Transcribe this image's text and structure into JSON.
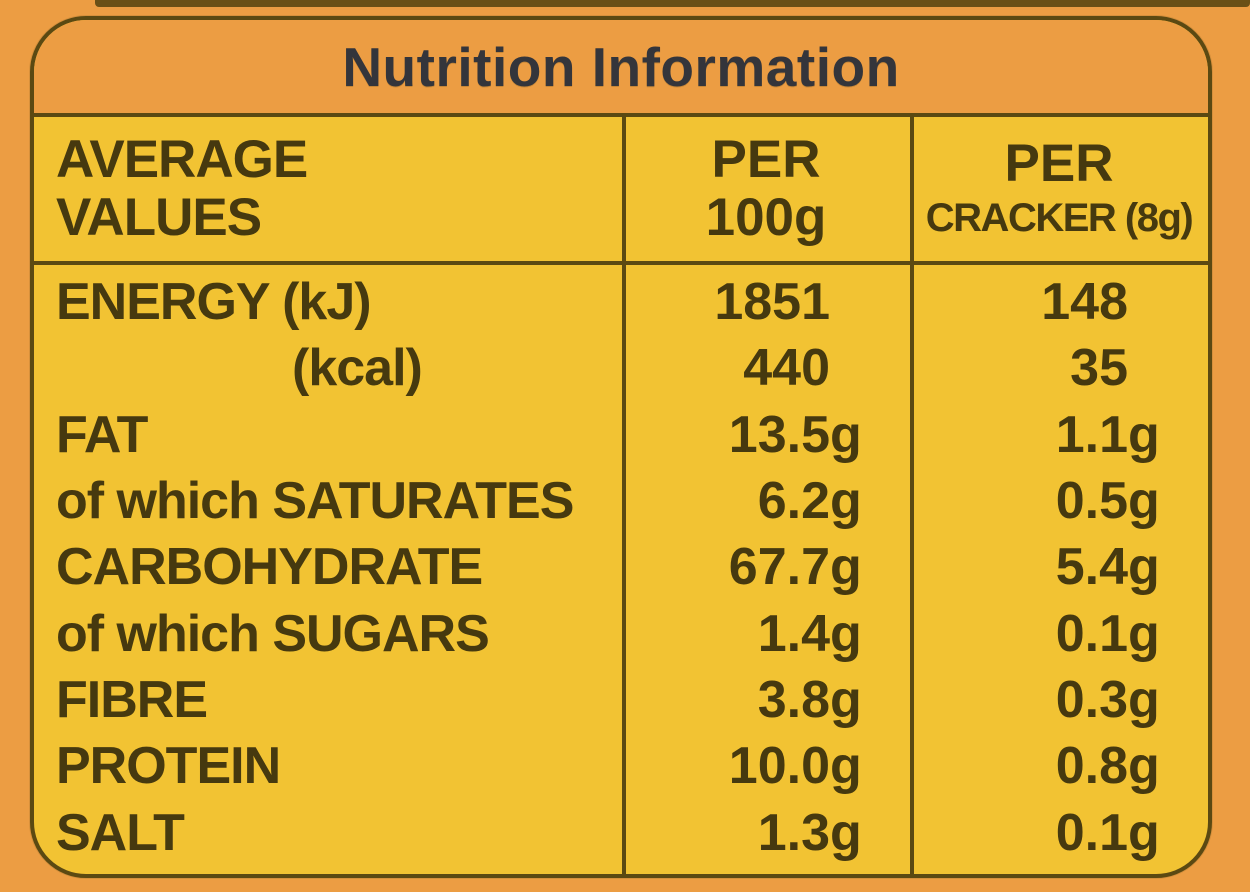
{
  "title": "Nutrition Information",
  "colors": {
    "background_orange": "#ec9d43",
    "panel_yellow": "#f2c333",
    "line_dark_olive": "#5b4912",
    "table_text": "#46390f",
    "title_text": "#34353b"
  },
  "table": {
    "headers": {
      "col1": {
        "line1": "AVERAGE",
        "line2": "VALUES"
      },
      "col2": {
        "line1": "PER",
        "line2": "100g"
      },
      "col3": {
        "line1": "PER",
        "line2": "CRACKER (8g)"
      }
    },
    "rows": [
      {
        "label": "ENERGY (kJ)",
        "per_100g": {
          "value": "1851",
          "unit": ""
        },
        "per_cracker": {
          "value": "148",
          "unit": ""
        }
      },
      {
        "label": "(kcal)",
        "per_100g": {
          "value": "440",
          "unit": ""
        },
        "per_cracker": {
          "value": "35",
          "unit": ""
        }
      },
      {
        "label": "FAT",
        "per_100g": {
          "value": "13.5",
          "unit": "g"
        },
        "per_cracker": {
          "value": "1.1",
          "unit": "g"
        }
      },
      {
        "label": "of which SATURATES",
        "per_100g": {
          "value": "6.2",
          "unit": "g"
        },
        "per_cracker": {
          "value": "0.5",
          "unit": "g"
        }
      },
      {
        "label": "CARBOHYDRATE",
        "per_100g": {
          "value": "67.7",
          "unit": "g"
        },
        "per_cracker": {
          "value": "5.4",
          "unit": "g"
        }
      },
      {
        "label": "of which SUGARS",
        "per_100g": {
          "value": "1.4",
          "unit": "g"
        },
        "per_cracker": {
          "value": "0.1",
          "unit": "g"
        }
      },
      {
        "label": "FIBRE",
        "per_100g": {
          "value": "3.8",
          "unit": "g"
        },
        "per_cracker": {
          "value": "0.3",
          "unit": "g"
        }
      },
      {
        "label": "PROTEIN",
        "per_100g": {
          "value": "10.0",
          "unit": "g"
        },
        "per_cracker": {
          "value": "0.8",
          "unit": "g"
        }
      },
      {
        "label": "SALT",
        "per_100g": {
          "value": "1.3",
          "unit": "g"
        },
        "per_cracker": {
          "value": "0.1",
          "unit": "g"
        }
      }
    ]
  }
}
